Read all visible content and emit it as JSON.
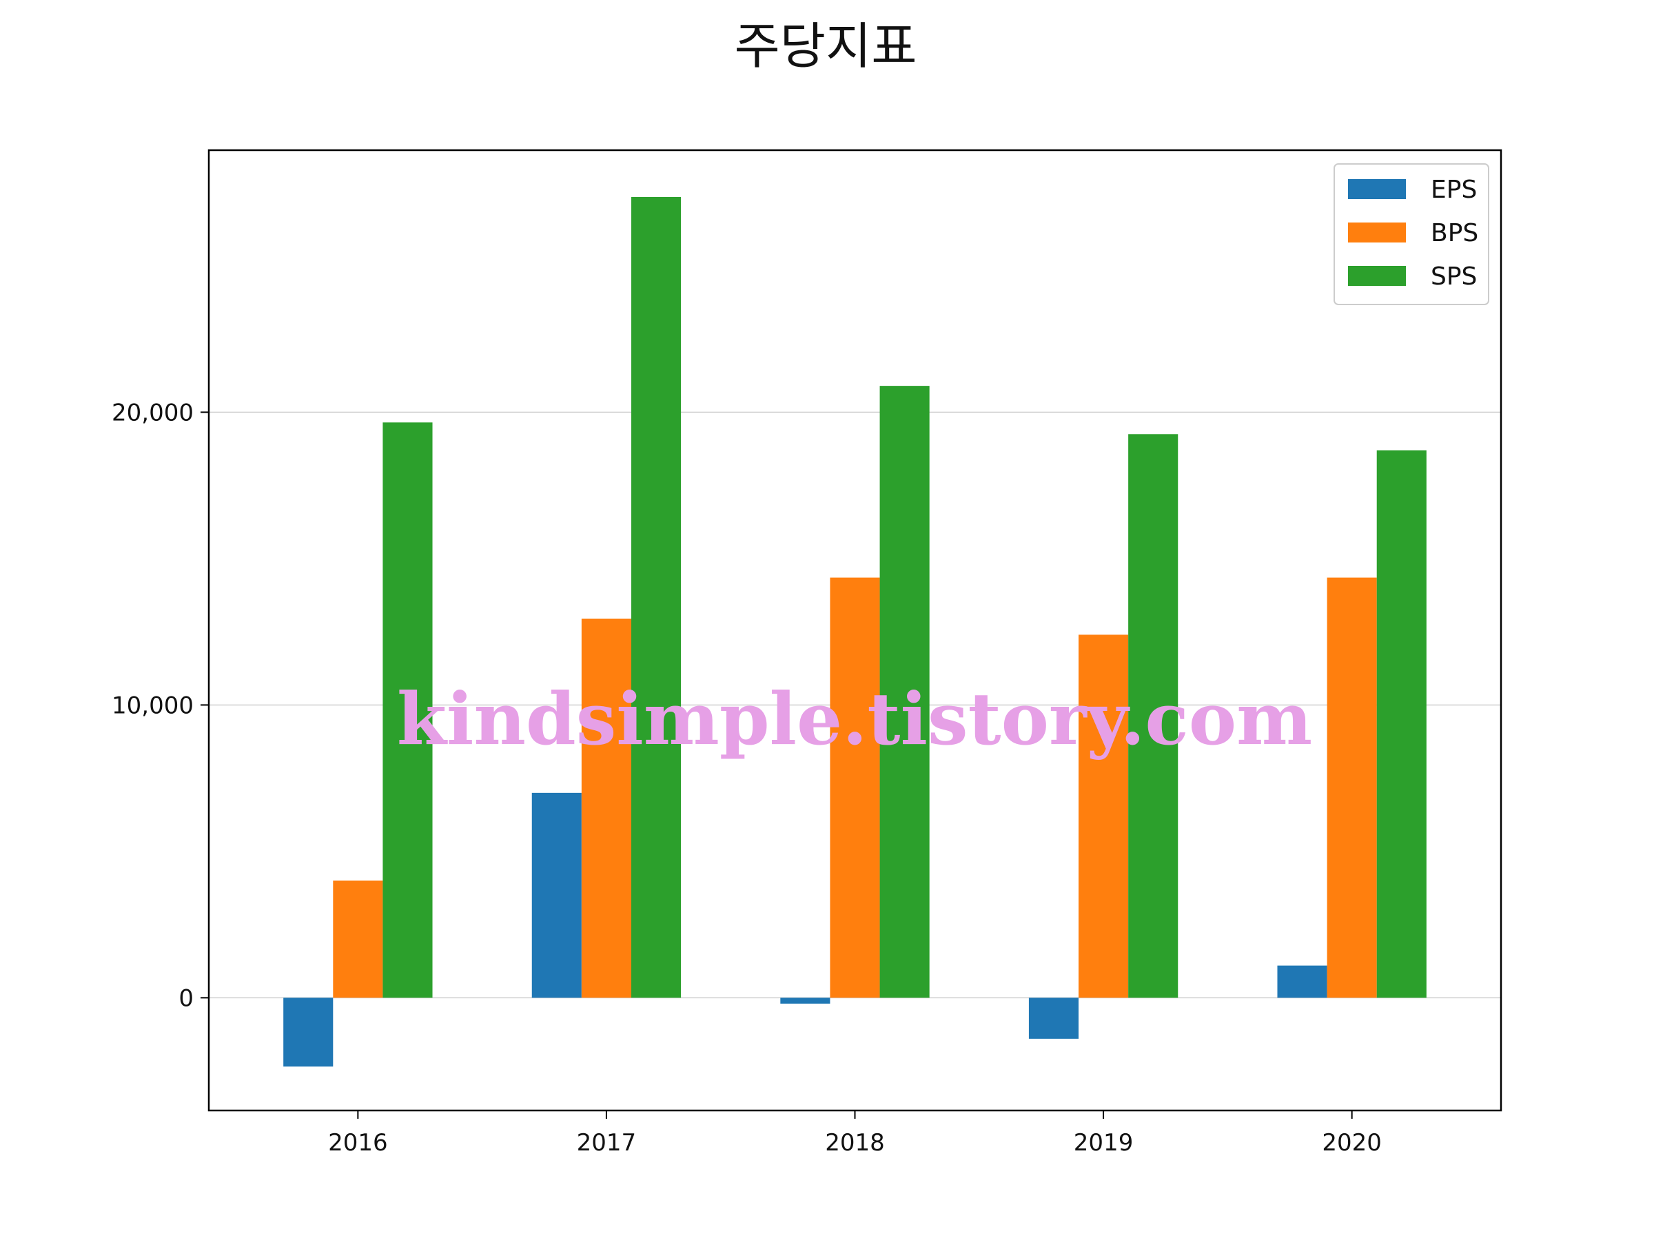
{
  "chart_data": {
    "type": "bar",
    "title": "주당지표",
    "xlabel": "",
    "ylabel": "",
    "categories": [
      "2016",
      "2017",
      "2018",
      "2019",
      "2020"
    ],
    "series": [
      {
        "name": "EPS",
        "color": "#1f77b4",
        "values": [
          -2350,
          7000,
          -200,
          -1400,
          1100
        ]
      },
      {
        "name": "BPS",
        "color": "#ff7f0e",
        "values": [
          4000,
          12950,
          14350,
          12400,
          14350
        ]
      },
      {
        "name": "SPS",
        "color": "#2ca02c",
        "values": [
          19650,
          27350,
          20900,
          19250,
          18700
        ]
      }
    ],
    "ylim": [
      -3850,
      28950
    ],
    "yticks": [
      0,
      10000,
      20000
    ],
    "ytick_labels": [
      "0",
      "10,000",
      "20,000"
    ],
    "grid": "horizontal",
    "legend_position": "top-right",
    "watermark": "kindsimple.tistory.com"
  }
}
